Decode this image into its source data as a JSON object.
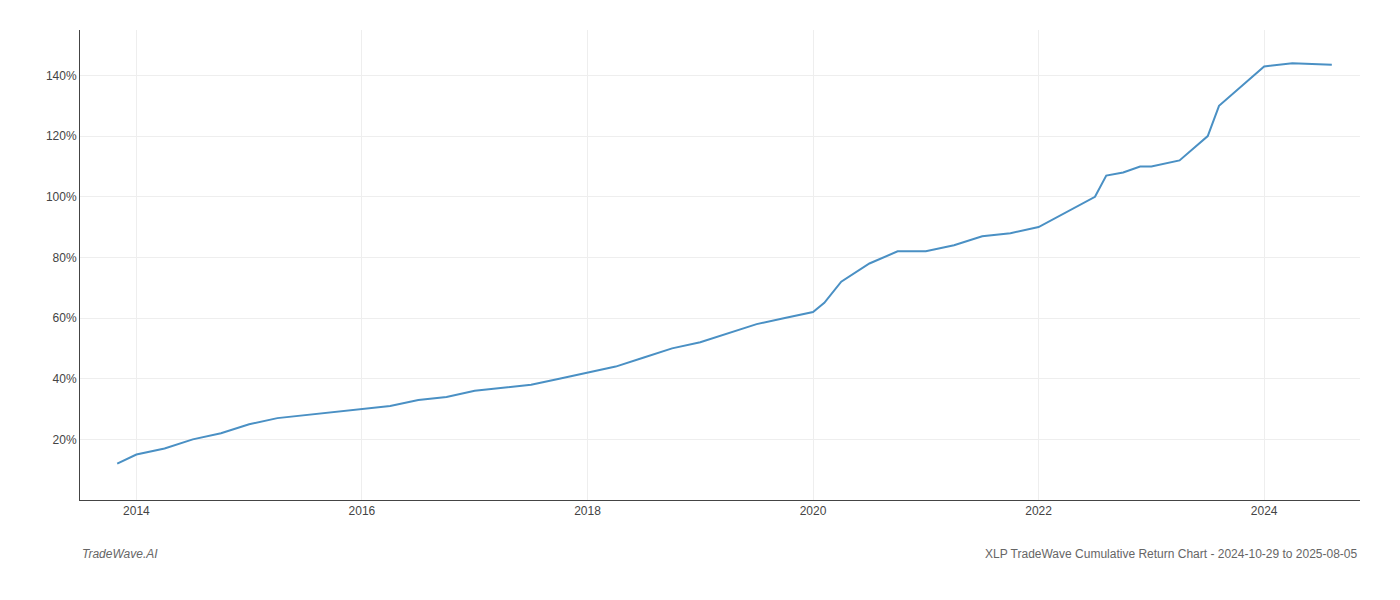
{
  "chart_data": {
    "type": "line",
    "x": [
      2013.83,
      2014.0,
      2014.25,
      2014.5,
      2014.75,
      2015.0,
      2015.25,
      2015.5,
      2015.75,
      2016.0,
      2016.25,
      2016.5,
      2016.75,
      2017.0,
      2017.25,
      2017.5,
      2017.75,
      2018.0,
      2018.25,
      2018.5,
      2018.75,
      2019.0,
      2019.25,
      2019.5,
      2019.75,
      2020.0,
      2020.1,
      2020.25,
      2020.5,
      2020.75,
      2021.0,
      2021.25,
      2021.5,
      2021.75,
      2022.0,
      2022.25,
      2022.5,
      2022.6,
      2022.75,
      2022.9,
      2023.0,
      2023.25,
      2023.5,
      2023.6,
      2024.0,
      2024.25,
      2024.5,
      2024.6
    ],
    "values": [
      12,
      15,
      17,
      20,
      22,
      25,
      27,
      28,
      29,
      30,
      31,
      33,
      34,
      36,
      37,
      38,
      40,
      42,
      44,
      47,
      50,
      52,
      55,
      58,
      60,
      62,
      65,
      72,
      78,
      82,
      82,
      84,
      87,
      88,
      90,
      95,
      100,
      107,
      108,
      110,
      110,
      112,
      120,
      130,
      143,
      144,
      143.5,
      143.5
    ],
    "color": "#4a90c4",
    "xlim": [
      2013.5,
      2024.85
    ],
    "ylim": [
      0,
      155
    ],
    "xticks": [
      2014,
      2016,
      2018,
      2020,
      2022,
      2024
    ],
    "yticks": [
      {
        "value": 20,
        "label": "20%"
      },
      {
        "value": 40,
        "label": "40%"
      },
      {
        "value": 60,
        "label": "60%"
      },
      {
        "value": 80,
        "label": "80%"
      },
      {
        "value": 100,
        "label": "100%"
      },
      {
        "value": 120,
        "label": "120%"
      },
      {
        "value": 140,
        "label": "140%"
      }
    ],
    "grid": true,
    "annotations": [
      "TradeWave.AI",
      "XLP TradeWave Cumulative Return Chart - 2024-10-29 to 2025-08-05"
    ]
  }
}
